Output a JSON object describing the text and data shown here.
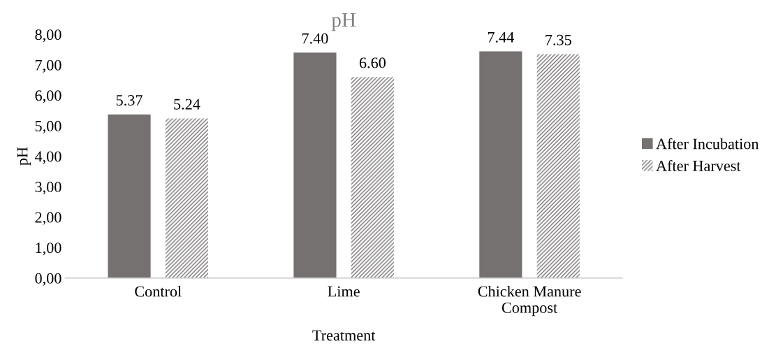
{
  "chart_data": {
    "type": "bar",
    "title": "pH",
    "xlabel": "Treatment",
    "ylabel": "pH",
    "categories": [
      "Control",
      "Lime",
      "Chicken Manure\nCompost"
    ],
    "series": [
      {
        "name": "After Incubation",
        "color": "#767171",
        "values": [
          5.37,
          7.4,
          7.44
        ],
        "value_labels": [
          "5.37",
          "7.40",
          "7.44"
        ]
      },
      {
        "name": "After Harvest",
        "color": "#767171",
        "values": [
          5.24,
          6.6,
          7.35
        ],
        "value_labels": [
          "5.24",
          "6.60",
          "7.35"
        ]
      }
    ],
    "ylim": [
      0,
      8
    ],
    "yticks": [
      {
        "value": 0,
        "label": "0,00"
      },
      {
        "value": 1,
        "label": "1,00"
      },
      {
        "value": 2,
        "label": "2,00"
      },
      {
        "value": 3,
        "label": "3,00"
      },
      {
        "value": 4,
        "label": "4,00"
      },
      {
        "value": 5,
        "label": "5,00"
      },
      {
        "value": 6,
        "label": "6,00"
      },
      {
        "value": 7,
        "label": "7,00"
      },
      {
        "value": 8,
        "label": "8,00"
      }
    ],
    "grid": false,
    "legend": "right"
  }
}
